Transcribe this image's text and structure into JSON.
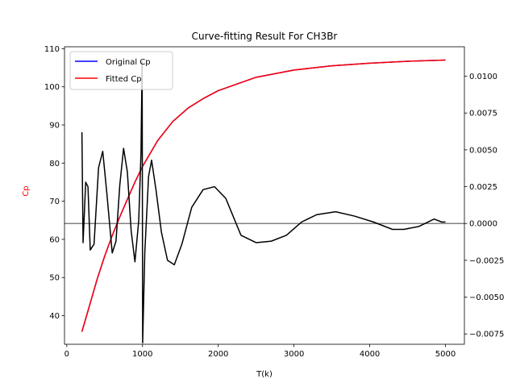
{
  "chart_data": {
    "type": "line",
    "title": "Curve-fitting Result For CH3Br",
    "xlabel": "T(k)",
    "ylabel": "Cp",
    "ylabel_color": "#ff0000",
    "xlim": [
      -30,
      5250
    ],
    "ylim": [
      32.5,
      110.5
    ],
    "ylim_right": [
      -0.0082,
      0.012
    ],
    "x_ticks": [
      0,
      1000,
      2000,
      3000,
      4000,
      5000
    ],
    "x_tick_labels": [
      "0",
      "1000",
      "2000",
      "3000",
      "4000",
      "5000"
    ],
    "y_ticks": [
      40,
      50,
      60,
      70,
      80,
      90,
      100,
      110
    ],
    "y_tick_labels": [
      "40",
      "50",
      "60",
      "70",
      "80",
      "90",
      "100",
      "110"
    ],
    "y_right_ticks": [
      -0.0075,
      -0.005,
      -0.0025,
      0.0,
      0.0025,
      0.005,
      0.0075,
      0.01
    ],
    "y_right_tick_labels": [
      "−0.0075",
      "−0.0050",
      "−0.0025",
      "0.0000",
      "0.0025",
      "0.0050",
      "0.0075",
      "0.0100"
    ],
    "legend": {
      "position": "top-left",
      "entries": [
        {
          "name": "Original Cp",
          "color": "#0000ff"
        },
        {
          "name": "Fitted Cp",
          "color": "#ff0000"
        }
      ]
    },
    "series": [
      {
        "name": "Original Cp",
        "axis": "left",
        "color": "#0000ff",
        "x": [
          200,
          300,
          400,
          500,
          600,
          700,
          800,
          900,
          1000,
          1200,
          1400,
          1600,
          1800,
          2000,
          2500,
          3000,
          3500,
          4000,
          4500,
          5000
        ],
        "y": [
          35.8,
          42.6,
          49.5,
          55.6,
          61.0,
          65.9,
          70.5,
          75.0,
          79.1,
          85.9,
          90.9,
          94.4,
          96.9,
          99.0,
          102.5,
          104.4,
          105.5,
          106.2,
          106.7,
          107.0
        ]
      },
      {
        "name": "Fitted Cp",
        "axis": "left",
        "color": "#ff0000",
        "x": [
          200,
          300,
          400,
          500,
          600,
          700,
          800,
          900,
          1000,
          1200,
          1400,
          1600,
          1800,
          2000,
          2500,
          3000,
          3500,
          4000,
          4500,
          5000
        ],
        "y": [
          35.8,
          42.6,
          49.5,
          55.6,
          61.0,
          65.9,
          70.5,
          75.0,
          79.1,
          85.9,
          90.9,
          94.4,
          96.9,
          99.0,
          102.5,
          104.4,
          105.5,
          106.2,
          106.7,
          107.0
        ]
      },
      {
        "axis": "right",
        "color": "#000000",
        "x": [
          200,
          215,
          250,
          280,
          310,
          360,
          420,
          475,
          530,
          600,
          650,
          700,
          750,
          800,
          850,
          900,
          950,
          980,
          995,
          1002,
          1030,
          1080,
          1120,
          1180,
          1250,
          1330,
          1420,
          1520,
          1650,
          1800,
          1950,
          2100,
          2300,
          2500,
          2700,
          2900,
          3100,
          3300,
          3550,
          3800,
          4050,
          4300,
          4450,
          4650,
          4850,
          4950,
          5000
        ],
        "y": [
          0.0062,
          -0.0013,
          0.0028,
          0.0025,
          -0.0018,
          -0.0014,
          0.0038,
          0.0049,
          0.002,
          -0.002,
          -0.0012,
          0.0026,
          0.0051,
          0.0035,
          -0.0005,
          -0.0026,
          0.0002,
          0.0048,
          0.011,
          -0.0081,
          -0.002,
          0.0032,
          0.0043,
          0.0022,
          -0.0006,
          -0.0025,
          -0.0028,
          -0.0014,
          0.0011,
          0.0023,
          0.0025,
          0.0017,
          -0.0008,
          -0.0013,
          -0.0012,
          -0.0008,
          0.0001,
          0.0006,
          0.0008,
          0.0005,
          0.0001,
          -0.0004,
          -0.0004,
          -0.0002,
          0.0003,
          0.0001,
          0.0001
        ]
      }
    ],
    "hlines": [
      {
        "axis": "right",
        "y": 0.0,
        "color": "#808080"
      }
    ]
  }
}
